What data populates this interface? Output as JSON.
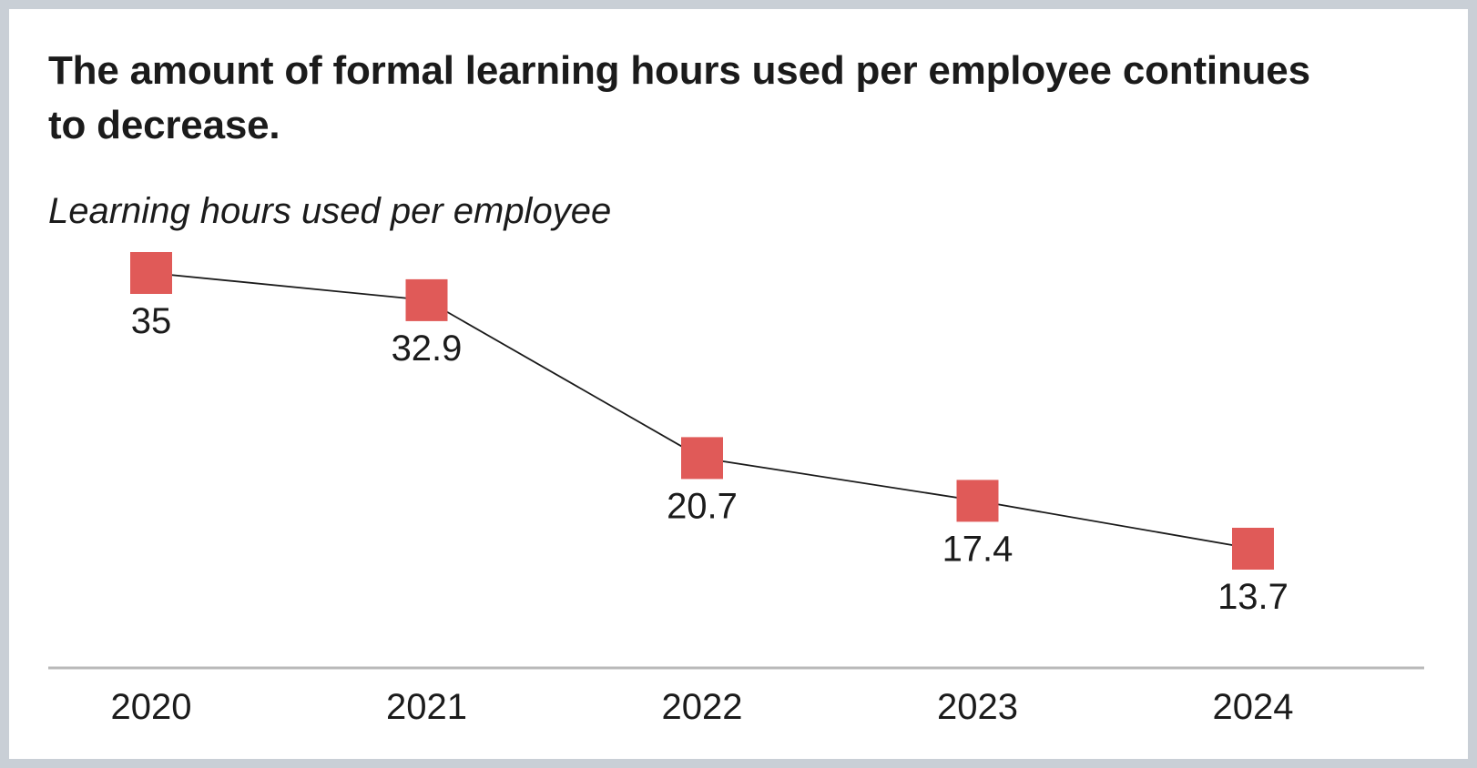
{
  "colors": {
    "marker": "#e05a58",
    "line": "#1b1b1b",
    "axis": "#b9b9b9",
    "frame": "#c9cfd6",
    "text": "#1b1b1b"
  },
  "chart_data": {
    "type": "line",
    "title": "The amount of formal learning hours used per employee continues to decrease.",
    "subtitle": "Learning hours used per employee",
    "xlabel": "",
    "ylabel": "",
    "categories": [
      "2020",
      "2021",
      "2022",
      "2023",
      "2024"
    ],
    "series": [
      {
        "values": [
          35,
          32.9,
          20.7,
          17.4,
          13.7
        ],
        "data_labels": [
          "35",
          "32.9",
          "20.7",
          "17.4",
          "13.7"
        ],
        "marker": "square"
      }
    ],
    "grid": false,
    "legend": "none"
  }
}
